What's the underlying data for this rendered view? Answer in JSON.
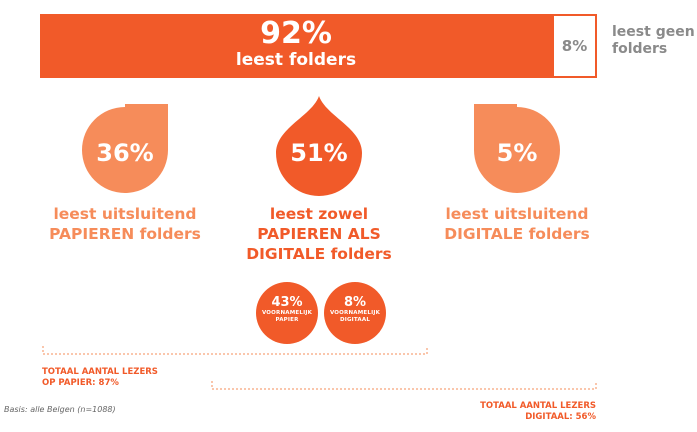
{
  "chart_data": {
    "type": "bar",
    "title": "",
    "segments": [
      {
        "name": "leest folders",
        "value": 92
      },
      {
        "name": "leest geen folders",
        "value": 8
      }
    ],
    "breakdown": [
      {
        "value": 36,
        "line1": "leest uitsluitend",
        "line2": "PAPIEREN folders"
      },
      {
        "value": 51,
        "line1": "leest zowel",
        "line2": "PAPIEREN ALS",
        "line3": "DIGITALE folders"
      },
      {
        "value": 5,
        "line1": "leest uitsluitend",
        "line2": "DIGITALE folders"
      }
    ],
    "sub_breakdown": [
      {
        "value": 43,
        "line1": "VOORNAMELIJK",
        "line2": "PAPIER"
      },
      {
        "value": 8,
        "line1": "VOORNAMELIJK",
        "line2": "DIGITAAL"
      }
    ],
    "totals": [
      {
        "line1": "TOTAAL AANTAL LEZERS",
        "line2": "OP PAPIER:",
        "value": 87
      },
      {
        "line1": "TOTAAL AANTAL LEZERS",
        "line2": "DIGITAAL:",
        "value": 56
      }
    ]
  },
  "labels": {
    "main_pct": "92%",
    "main_label": "leest folders",
    "rest_pct": "8%",
    "rest_line1": "leest geen",
    "rest_line2": "folders",
    "drop1_pct": "36%",
    "drop2_pct": "51%",
    "drop3_pct": "5%",
    "circle1_pct": "43%",
    "circle2_pct": "8%",
    "total1_line2": "OP PAPIER: 87%",
    "total2_line2": "DIGITAAL: 56%",
    "basis": "Basis: alle Belgen (n=1088)"
  },
  "colors": {
    "primary": "#f15a29",
    "light": "#f68c5a",
    "grey": "#8a8a8a"
  }
}
